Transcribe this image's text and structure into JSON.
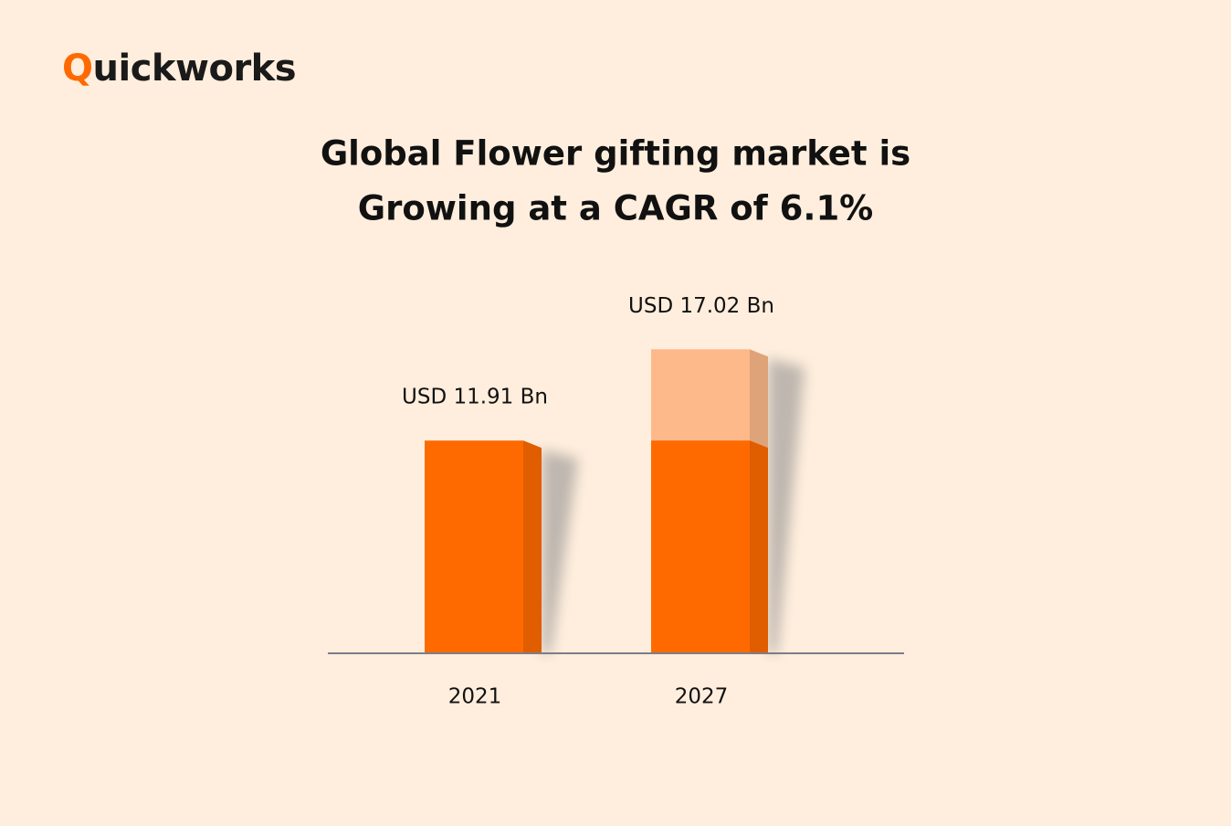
{
  "brand": "Quickworks",
  "chart_data": {
    "type": "bar",
    "title": [
      "Global Flower gifting market is",
      "Growing at a CAGR of 6.1%"
    ],
    "categories": [
      "2021",
      "2027"
    ],
    "values": [
      11.91,
      17.02
    ],
    "value_labels": [
      "USD 11.91 Bn",
      "USD 17.02 Bn"
    ],
    "color": "#ff6a00",
    "growth_color": "#fdb98a",
    "ylim": [
      0,
      20
    ]
  }
}
